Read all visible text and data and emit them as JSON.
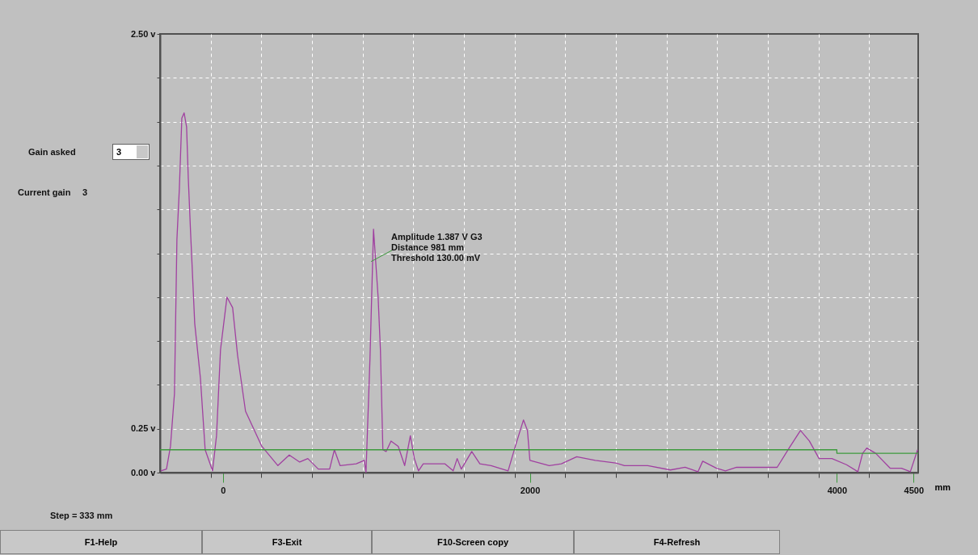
{
  "chart_data": {
    "type": "line",
    "xlabel": "mm",
    "xlim": [
      -410,
      4530
    ],
    "ylim": [
      0,
      2.5
    ],
    "xticks": [
      {
        "value": -80,
        "label": null
      },
      0,
      {
        "value": 250,
        "label": null
      },
      {
        "value": 580,
        "label": null
      },
      {
        "value": 910,
        "label": null
      },
      {
        "value": 1240,
        "label": null
      },
      {
        "value": 1570,
        "label": null
      },
      {
        "value": 1900,
        "label": null
      },
      2000,
      {
        "value": 2230,
        "label": null
      },
      {
        "value": 2560,
        "label": null
      },
      {
        "value": 2890,
        "label": null
      },
      {
        "value": 3220,
        "label": null
      },
      {
        "value": 3550,
        "label": null
      },
      {
        "value": 3880,
        "label": null
      },
      4000,
      {
        "value": 4210,
        "label": null
      },
      4500
    ],
    "yticks": [
      {
        "value": 0,
        "label": "0.00 v"
      },
      {
        "value": 0.25,
        "label": "0.25 v"
      },
      {
        "value": 0.5,
        "label": null
      },
      {
        "value": 0.75,
        "label": null
      },
      {
        "value": 1,
        "label": null
      },
      {
        "value": 1.25,
        "label": null
      },
      {
        "value": 1.5,
        "label": null
      },
      {
        "value": 1.75,
        "label": null
      },
      {
        "value": 2,
        "label": null
      },
      {
        "value": 2.25,
        "label": null
      },
      {
        "value": 2.5,
        "label": "2.50 v"
      }
    ],
    "grid": true,
    "marker": "none",
    "line_style": "solid",
    "series": [
      {
        "color": "#a040a0",
        "x": [
          -405,
          -368,
          -342,
          -316,
          -300,
          -284,
          -268,
          -253,
          -237,
          -226,
          -211,
          -184,
          -147,
          -116,
          -68,
          -42,
          -16,
          26,
          63,
          95,
          147,
          253,
          358,
          432,
          500,
          553,
          621,
          695,
          726,
          763,
          868,
          921,
          932,
          958,
          981,
          1011,
          1026,
          1042,
          1063,
          1095,
          1142,
          1184,
          1221,
          1247,
          1274,
          1305,
          1447,
          1500,
          1526,
          1553,
          1621,
          1674,
          1747,
          1858,
          1905,
          1958,
          1984,
          2000,
          2126,
          2205,
          2305,
          2426,
          2558,
          2616,
          2768,
          2916,
          3011,
          3095,
          3126,
          3216,
          3274,
          3347,
          3611,
          3689,
          3763,
          3821,
          3884,
          3968,
          4063,
          4137,
          4168,
          4195,
          4253,
          4347,
          4421,
          4479,
          4526
        ],
        "values": [
          0.01,
          0.02,
          0.15,
          0.45,
          1.33,
          1.62,
          2.02,
          2.05,
          1.97,
          1.68,
          1.37,
          0.85,
          0.54,
          0.13,
          0.01,
          0.21,
          0.7,
          1.0,
          0.94,
          0.67,
          0.35,
          0.15,
          0.04,
          0.1,
          0.06,
          0.08,
          0.02,
          0.02,
          0.13,
          0.04,
          0.05,
          0.07,
          0.0,
          0.65,
          1.387,
          1.0,
          0.7,
          0.13,
          0.12,
          0.18,
          0.15,
          0.04,
          0.21,
          0.08,
          0.01,
          0.05,
          0.05,
          0.01,
          0.08,
          0.02,
          0.12,
          0.05,
          0.04,
          0.01,
          0.15,
          0.3,
          0.24,
          0.07,
          0.04,
          0.05,
          0.09,
          0.07,
          0.055,
          0.04,
          0.04,
          0.015,
          0.03,
          0.005,
          0.065,
          0.025,
          0.01,
          0.03,
          0.03,
          0.14,
          0.24,
          0.18,
          0.08,
          0.08,
          0.045,
          0.005,
          0.11,
          0.14,
          0.11,
          0.025,
          0.025,
          0.005,
          0.13
        ]
      },
      {
        "type": "step",
        "color": "#3c9a3c",
        "x": [
          -410,
          4000,
          4530
        ],
        "values": [
          0.13,
          0.11,
          0.11
        ]
      }
    ],
    "annotations": [
      {
        "text": "Amplitude 1.387 V G3\nDistance   981 mm\nThreshold 130.00 mV",
        "x": 981,
        "y": 1.387
      },
      "Step = 333 mm",
      "Gain asked",
      "3",
      "Current gain",
      "3",
      "F1-Help",
      "F3-Exit",
      "F10-Screen copy",
      "F4-Refresh"
    ]
  }
}
